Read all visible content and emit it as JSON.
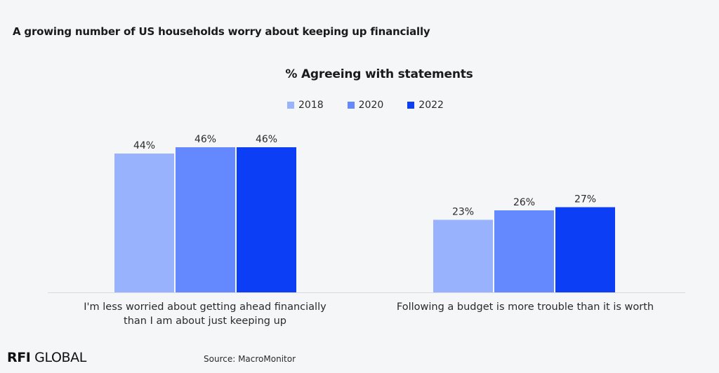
{
  "page_title": "A growing number of US households worry about keeping up financially",
  "brand": {
    "bold": "RFI",
    "rest": "GLOBAL"
  },
  "source": "Source: MacroMonitor",
  "colors": {
    "2018": "#99b2fd",
    "2020": "#6488fe",
    "2022": "#0b3ef5"
  },
  "chart_data": {
    "type": "bar",
    "title": "% Agreeing with statements",
    "categories": [
      "I'm less worried about getting ahead financially than I am about just keeping up",
      "Following a budget is more trouble than it is worth"
    ],
    "category_lines": [
      [
        "I'm less worried about getting ahead financially",
        "than I am about just keeping up"
      ],
      [
        "Following a budget is more trouble than it is worth"
      ]
    ],
    "series": [
      {
        "name": "2018",
        "values": [
          44,
          23
        ],
        "labels": [
          "44%",
          "23%"
        ]
      },
      {
        "name": "2020",
        "values": [
          46,
          26
        ],
        "labels": [
          "46%",
          "26%"
        ]
      },
      {
        "name": "2022",
        "values": [
          46,
          27
        ],
        "labels": [
          "46%",
          "27%"
        ]
      }
    ],
    "ylim": [
      0,
      100
    ],
    "legend": "top-center",
    "grid": false,
    "xlabel": "",
    "ylabel": ""
  }
}
